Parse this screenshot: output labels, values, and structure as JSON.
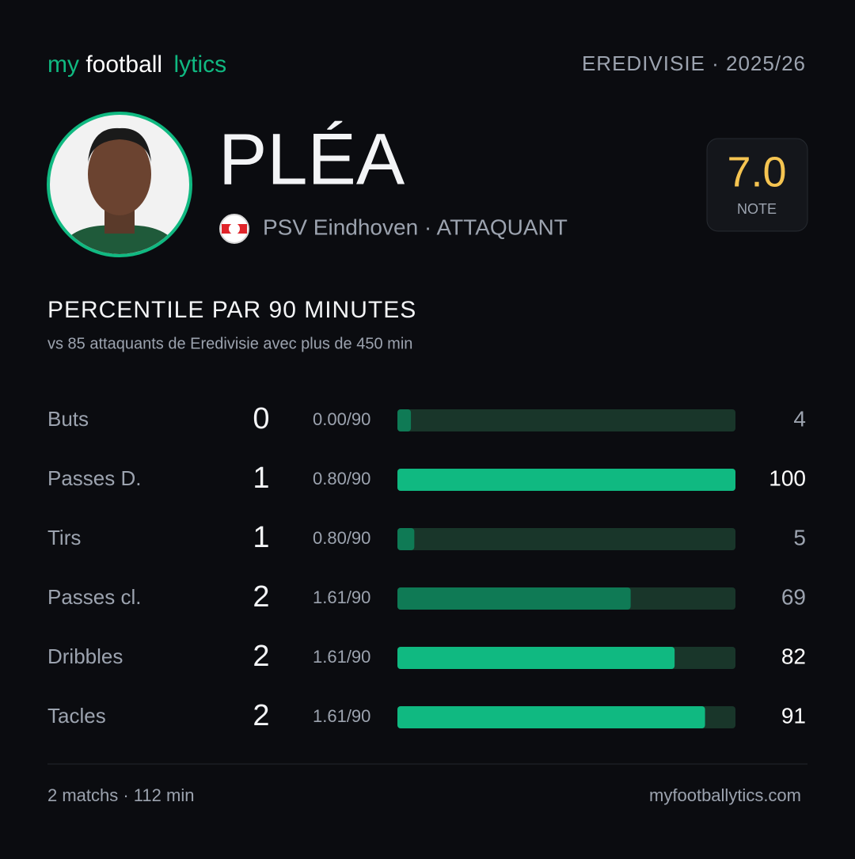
{
  "header": {
    "logo": [
      "my",
      "football",
      "lytics"
    ],
    "league": "EREDIVISIE · 2025/26"
  },
  "player": {
    "name": "PLÉA",
    "club_line": "PSV Eindhoven · ATTAQUANT",
    "rating": "7.0",
    "rating_label": "NOTE"
  },
  "section": {
    "title": "PERCENTILE PAR 90 MINUTES",
    "subtitle": "vs 85 attaquants de Eredivisie avec plus de 450 min"
  },
  "xlim": [
    0,
    100
  ],
  "rows": [
    {
      "label": "Buts",
      "count": 0,
      "per90": "0.00/90",
      "percentile": 4,
      "color": "#0f7a55"
    },
    {
      "label": "Passes D.",
      "count": 1,
      "per90": "0.80/90",
      "percentile": 100,
      "color": "#10b981"
    },
    {
      "label": "Tirs",
      "count": 1,
      "per90": "0.80/90",
      "percentile": 5,
      "color": "#0f7a55"
    },
    {
      "label": "Passes cl.",
      "count": 2,
      "per90": "1.61/90",
      "percentile": 69,
      "color": "#0f7a55"
    },
    {
      "label": "Dribbles",
      "count": 2,
      "per90": "1.61/90",
      "percentile": 82,
      "color": "#10b981"
    },
    {
      "label": "Tacles",
      "count": 2,
      "per90": "1.61/90",
      "percentile": 91,
      "color": "#10b981"
    }
  ],
  "footer": {
    "left": "2 matchs · 112 min",
    "right": "myfootballytics.com"
  }
}
